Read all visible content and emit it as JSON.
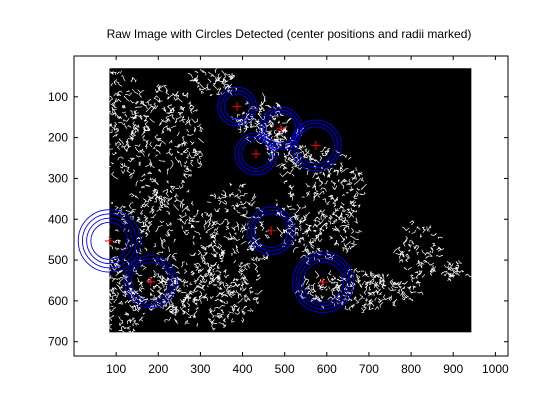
{
  "chart_data": {
    "type": "scatter",
    "title": "Raw Image with Circles Detected (center positions and radii marked)",
    "xlabel": "",
    "ylabel": "",
    "xlim": [
      0,
      1030
    ],
    "ylim": [
      0,
      735
    ],
    "y_reversed": true,
    "image_extent": {
      "x": [
        84,
        943
      ],
      "y": [
        30,
        677
      ]
    },
    "xticks": [
      100,
      200,
      300,
      400,
      500,
      600,
      700,
      800,
      900,
      1000
    ],
    "yticks": [
      100,
      200,
      300,
      400,
      500,
      600,
      700
    ],
    "grid": false,
    "colors": {
      "background": "#ffffff",
      "axes_face": "#ffffff",
      "image_face": "#000000",
      "edges": "#ffffff",
      "circle": "#0000ff",
      "center_marker": "#ff0000"
    },
    "circles": [
      {
        "x": 387,
        "y": 124,
        "radii": [
          30,
          38,
          46
        ]
      },
      {
        "x": 491,
        "y": 177,
        "radii": [
          36,
          43,
          50
        ]
      },
      {
        "x": 574,
        "y": 219,
        "radii": [
          44,
          52,
          60
        ]
      },
      {
        "x": 432,
        "y": 240,
        "radii": [
          34,
          42,
          50
        ]
      },
      {
        "x": 468,
        "y": 428,
        "radii": [
          40,
          48,
          56
        ]
      },
      {
        "x": 84,
        "y": 453,
        "radii": [
          44,
          54,
          64,
          74
        ]
      },
      {
        "x": 182,
        "y": 553,
        "radii": [
          46,
          54,
          62
        ]
      },
      {
        "x": 591,
        "y": 554,
        "radii": [
          48,
          56,
          64,
          72
        ]
      }
    ]
  }
}
